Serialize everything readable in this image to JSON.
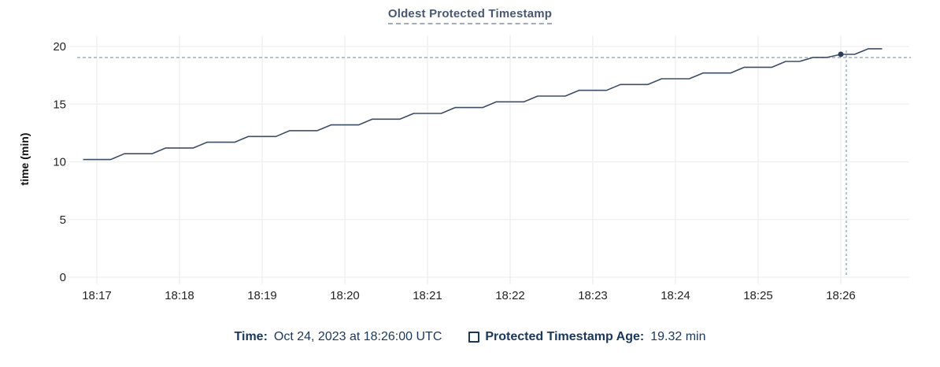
{
  "title": "Oldest Protected Timestamp",
  "colors": {
    "title": "#475872",
    "series_line": "#3e4d66",
    "hover_dot": "#2b3c57",
    "grid": "#efefef",
    "axis_text": "#242424",
    "legend_text": "#1a3859",
    "crosshair": "#93a9ba",
    "background": "#ffffff"
  },
  "chart_data": {
    "type": "line",
    "title": "Oldest Protected Timestamp",
    "xlabel": "",
    "ylabel": "time (min)",
    "ylim": [
      0,
      20
    ],
    "y_ticks": [
      0,
      5,
      10,
      15,
      20
    ],
    "x_tick_labels": [
      "18:17",
      "18:18",
      "18:19",
      "18:20",
      "18:21",
      "18:22",
      "18:23",
      "18:24",
      "18:25",
      "18:26"
    ],
    "grid": true,
    "legend_position": "bottom",
    "series": [
      {
        "name": "Protected Timestamp Age",
        "unit": "min",
        "points": [
          [
            "18:16:50",
            10.2
          ],
          [
            "18:17:00",
            10.2
          ],
          [
            "18:17:10",
            10.2
          ],
          [
            "18:17:20",
            10.7
          ],
          [
            "18:17:30",
            10.7
          ],
          [
            "18:17:40",
            10.7
          ],
          [
            "18:17:50",
            11.2
          ],
          [
            "18:18:00",
            11.2
          ],
          [
            "18:18:10",
            11.2
          ],
          [
            "18:18:20",
            11.7
          ],
          [
            "18:18:30",
            11.7
          ],
          [
            "18:18:40",
            11.7
          ],
          [
            "18:18:50",
            12.2
          ],
          [
            "18:19:00",
            12.2
          ],
          [
            "18:19:10",
            12.2
          ],
          [
            "18:19:20",
            12.7
          ],
          [
            "18:19:30",
            12.7
          ],
          [
            "18:19:40",
            12.7
          ],
          [
            "18:19:50",
            13.2
          ],
          [
            "18:20:00",
            13.2
          ],
          [
            "18:20:10",
            13.2
          ],
          [
            "18:20:20",
            13.7
          ],
          [
            "18:20:30",
            13.7
          ],
          [
            "18:20:40",
            13.7
          ],
          [
            "18:20:50",
            14.2
          ],
          [
            "18:21:00",
            14.2
          ],
          [
            "18:21:10",
            14.2
          ],
          [
            "18:21:20",
            14.7
          ],
          [
            "18:21:30",
            14.7
          ],
          [
            "18:21:40",
            14.7
          ],
          [
            "18:21:50",
            15.2
          ],
          [
            "18:22:00",
            15.2
          ],
          [
            "18:22:10",
            15.2
          ],
          [
            "18:22:20",
            15.7
          ],
          [
            "18:22:30",
            15.7
          ],
          [
            "18:22:40",
            15.7
          ],
          [
            "18:22:50",
            16.2
          ],
          [
            "18:23:00",
            16.2
          ],
          [
            "18:23:10",
            16.2
          ],
          [
            "18:23:20",
            16.7
          ],
          [
            "18:23:30",
            16.7
          ],
          [
            "18:23:40",
            16.7
          ],
          [
            "18:23:50",
            17.2
          ],
          [
            "18:24:00",
            17.2
          ],
          [
            "18:24:10",
            17.2
          ],
          [
            "18:24:20",
            17.7
          ],
          [
            "18:24:30",
            17.7
          ],
          [
            "18:24:40",
            17.7
          ],
          [
            "18:24:50",
            18.2
          ],
          [
            "18:25:00",
            18.2
          ],
          [
            "18:25:10",
            18.2
          ],
          [
            "18:25:20",
            18.7
          ],
          [
            "18:25:30",
            18.7
          ],
          [
            "18:25:40",
            19.05
          ],
          [
            "18:25:50",
            19.05
          ],
          [
            "18:26:00",
            19.32
          ],
          [
            "18:26:10",
            19.32
          ],
          [
            "18:26:20",
            19.8
          ],
          [
            "18:26:30",
            19.8
          ]
        ]
      }
    ],
    "hover": {
      "time": "18:26:00",
      "value": 19.32,
      "crosshair_time": "18:26:04",
      "crosshair_value": 19.04
    }
  },
  "legend": {
    "time_label": "Time:",
    "time_value": "Oct 24, 2023 at 18:26:00 UTC",
    "series_label": "Protected Timestamp Age:",
    "series_value": "19.32 min",
    "checkbox_checked": false
  }
}
